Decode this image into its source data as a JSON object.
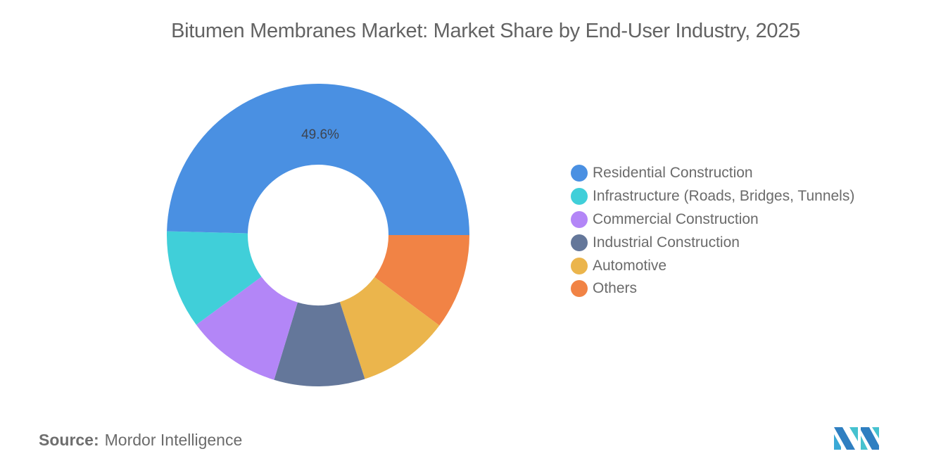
{
  "title": "Bitumen Membranes Market: Market Share by End-User Industry, 2025",
  "source": {
    "label": "Source:",
    "value": "Mordor Intelligence"
  },
  "logo": {
    "icon": "mordor-intelligence-logo-icon"
  },
  "chart_data": {
    "type": "pie",
    "variant": "donut",
    "title": "Bitumen Membranes Market: Market Share by End-User Industry, 2025",
    "categories": [
      "Residential Construction",
      "Infrastructure (Roads, Bridges, Tunnels)",
      "Commercial Construction",
      "Industrial Construction",
      "Automotive",
      "Others"
    ],
    "values": [
      49.6,
      10.5,
      10.2,
      9.7,
      9.8,
      10.2
    ],
    "colors": [
      "#4a90e2",
      "#40cfd9",
      "#b386f7",
      "#64779a",
      "#ebb54c",
      "#f18345"
    ],
    "data_labels": [
      {
        "category": "Residential Construction",
        "text": "49.6%"
      }
    ],
    "unit": "%",
    "legend_position": "right"
  },
  "legend": {
    "items": [
      {
        "label": "Residential Construction",
        "color": "#4a90e2"
      },
      {
        "label": "Infrastructure (Roads, Bridges, Tunnels)",
        "color": "#40cfd9"
      },
      {
        "label": "Commercial Construction",
        "color": "#b386f7"
      },
      {
        "label": "Industrial Construction",
        "color": "#64779a"
      },
      {
        "label": "Automotive",
        "color": "#ebb54c"
      },
      {
        "label": "Others",
        "color": "#f18345"
      }
    ]
  }
}
